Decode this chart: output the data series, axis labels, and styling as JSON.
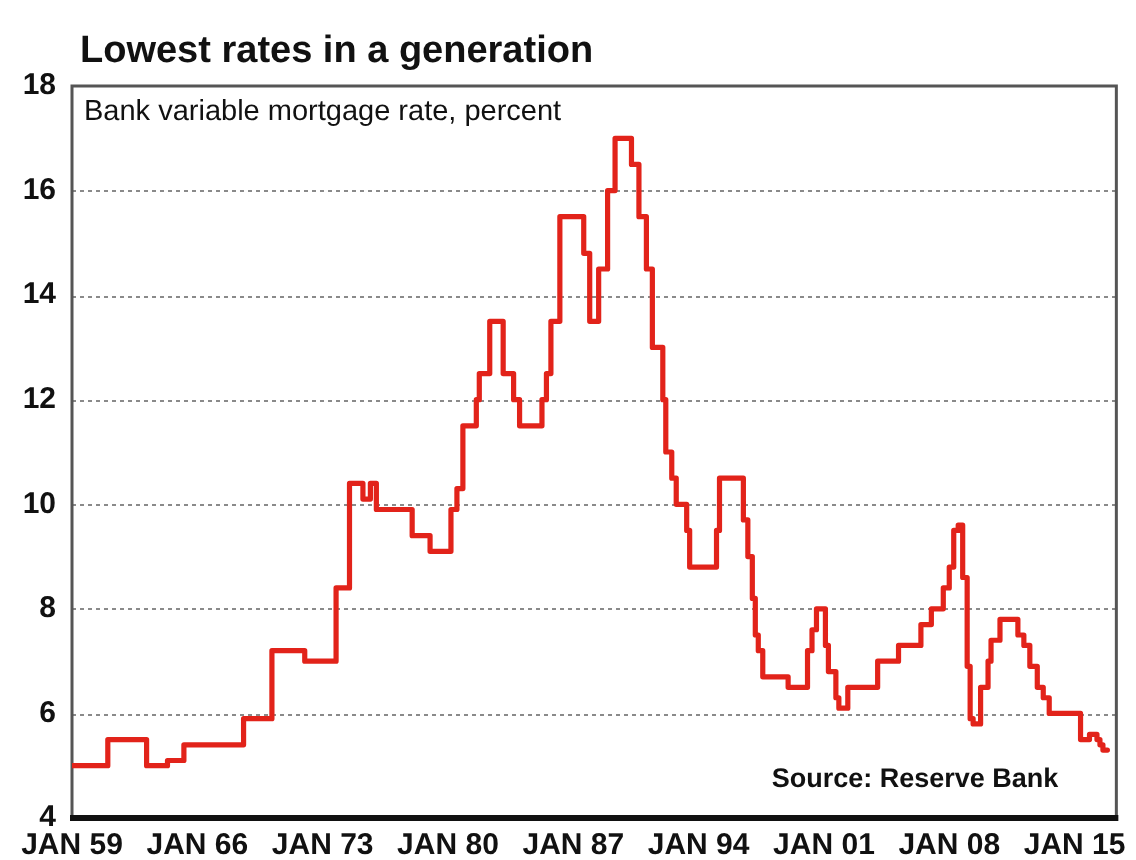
{
  "chart_data": {
    "type": "step",
    "title": "Lowest rates in a generation",
    "subtitle": "Bank variable mortgage rate, percent",
    "annotations": [
      "Source: Reserve Bank"
    ],
    "x": [
      "1959-01",
      "1961-01",
      "1963-03",
      "1964-05",
      "1965-04",
      "1968-08",
      "1970-03",
      "1972-01",
      "1973-10",
      "1974-07",
      "1975-04",
      "1975-09",
      "1976-01",
      "1978-01",
      "1979-01",
      "1980-03",
      "1980-07",
      "1980-11",
      "1981-08",
      "1981-10",
      "1982-05",
      "1983-02",
      "1983-09",
      "1984-01",
      "1985-04",
      "1985-07",
      "1985-10",
      "1986-04",
      "1987-08",
      "1987-12",
      "1988-06",
      "1988-12",
      "1989-05",
      "1990-04",
      "1990-09",
      "1991-02",
      "1991-06",
      "1992-01",
      "1992-03",
      "1992-07",
      "1992-10",
      "1993-05",
      "1993-07",
      "1995-01",
      "1995-03",
      "1996-07",
      "1996-10",
      "1997-01",
      "1997-03",
      "1997-05",
      "1997-08",
      "1999-01",
      "2000-02",
      "2000-05",
      "2000-08",
      "2001-02",
      "2001-04",
      "2001-09",
      "2001-11",
      "2002-05",
      "2004-01",
      "2005-03",
      "2006-06",
      "2007-01",
      "2007-09",
      "2008-01",
      "2008-04",
      "2008-07",
      "2008-10",
      "2009-01",
      "2009-03",
      "2009-05",
      "2009-10",
      "2010-03",
      "2010-05",
      "2010-11",
      "2011-11",
      "2012-03",
      "2012-07",
      "2012-12",
      "2013-04",
      "2013-08",
      "2015-05",
      "2015-11",
      "2016-04",
      "2016-06",
      "2016-08",
      "2016-11"
    ],
    "values": [
      5.0,
      5.5,
      5.0,
      5.1,
      5.4,
      5.9,
      7.2,
      7.0,
      8.4,
      10.4,
      10.1,
      10.4,
      9.9,
      9.4,
      9.1,
      9.9,
      10.3,
      11.5,
      12.0,
      12.5,
      13.5,
      12.5,
      12.0,
      11.5,
      12.0,
      12.5,
      13.5,
      15.5,
      14.8,
      13.5,
      14.5,
      16.0,
      17.0,
      16.5,
      15.5,
      14.5,
      13.0,
      12.0,
      11.0,
      10.5,
      10.0,
      9.5,
      8.8,
      9.5,
      10.5,
      9.7,
      9.0,
      8.2,
      7.5,
      7.2,
      6.7,
      6.5,
      7.2,
      7.6,
      8.0,
      7.3,
      6.8,
      6.3,
      6.1,
      6.5,
      7.0,
      7.3,
      7.7,
      8.0,
      8.4,
      8.8,
      9.5,
      9.6,
      8.6,
      6.9,
      5.9,
      5.8,
      6.5,
      7.0,
      7.4,
      7.8,
      7.5,
      7.3,
      6.9,
      6.5,
      6.3,
      6.0,
      5.5,
      5.6,
      5.5,
      5.4,
      5.3,
      5.3
    ],
    "color": "#e2231a",
    "line_style": "solid",
    "marker": "none",
    "xlim": [
      "1959-01",
      "2017-05"
    ],
    "xticks": [
      {
        "value": "1959-01",
        "label": "JAN 59"
      },
      {
        "value": "1966-01",
        "label": "JAN 66"
      },
      {
        "value": "1973-01",
        "label": "JAN 73"
      },
      {
        "value": "1980-01",
        "label": "JAN 80"
      },
      {
        "value": "1987-01",
        "label": "JAN 87"
      },
      {
        "value": "1994-01",
        "label": "JAN 94"
      },
      {
        "value": "2001-01",
        "label": "JAN 01"
      },
      {
        "value": "2008-01",
        "label": "JAN 08"
      },
      {
        "value": "2015-01",
        "label": "JAN 15"
      }
    ],
    "ylim": [
      4,
      18
    ],
    "yticks": [
      4,
      6,
      8,
      10,
      12,
      14,
      16,
      18
    ],
    "grid": "y",
    "legend": false
  }
}
